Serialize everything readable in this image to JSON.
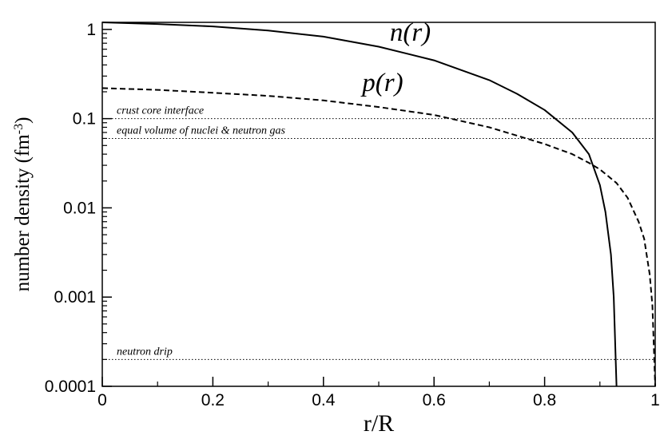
{
  "chart_data": {
    "type": "line",
    "xlabel": "r/R",
    "ylabel": "number density (fm",
    "ylabel_sup": "-3",
    "ylabel_close": ")",
    "xlim": [
      0,
      1
    ],
    "ylim": [
      0.0001,
      1.2
    ],
    "yscale": "log",
    "grid": false,
    "xticks": [
      {
        "value": 0,
        "label": "0"
      },
      {
        "value": 0.2,
        "label": "0.2"
      },
      {
        "value": 0.4,
        "label": "0.4"
      },
      {
        "value": 0.6,
        "label": "0.6"
      },
      {
        "value": 0.8,
        "label": "0.8"
      },
      {
        "value": 1,
        "label": "1"
      }
    ],
    "yticks": [
      {
        "value": 1,
        "label": "1"
      },
      {
        "value": 0.1,
        "label": "0.1"
      },
      {
        "value": 0.01,
        "label": "0.01"
      },
      {
        "value": 0.001,
        "label": "0.001"
      },
      {
        "value": 0.0001,
        "label": "0.0001"
      }
    ],
    "series": [
      {
        "name": "n(r)",
        "style": "solid",
        "x": [
          0,
          0.1,
          0.2,
          0.3,
          0.4,
          0.5,
          0.6,
          0.7,
          0.75,
          0.8,
          0.85,
          0.88,
          0.9,
          0.91,
          0.92,
          0.925,
          0.93
        ],
        "y": [
          1.2,
          1.15,
          1.08,
          0.97,
          0.83,
          0.64,
          0.45,
          0.27,
          0.19,
          0.125,
          0.07,
          0.04,
          0.018,
          0.009,
          0.003,
          0.001,
          0.0001
        ]
      },
      {
        "name": "p(r)",
        "style": "dashed",
        "x": [
          0,
          0.1,
          0.2,
          0.3,
          0.4,
          0.5,
          0.6,
          0.7,
          0.8,
          0.85,
          0.88,
          0.9,
          0.93,
          0.95,
          0.97,
          0.98,
          0.99,
          0.995,
          1.0
        ],
        "y": [
          0.22,
          0.21,
          0.195,
          0.18,
          0.16,
          0.135,
          0.11,
          0.08,
          0.052,
          0.04,
          0.032,
          0.027,
          0.019,
          0.013,
          0.007,
          0.0045,
          0.0018,
          0.0008,
          0.0001
        ]
      }
    ],
    "curve_labels": [
      {
        "series": "n(r)",
        "text": "n(r)",
        "x": 0.52,
        "y": 0.75
      },
      {
        "series": "p(r)",
        "text": "p(r)",
        "x": 0.47,
        "y": 0.205
      }
    ],
    "reference_lines": [
      {
        "y": 0.1,
        "label": "crust core interface"
      },
      {
        "y": 0.06,
        "label": "equal volume of nuclei & neutron gas"
      },
      {
        "y": 0.0002,
        "label": "neutron drip"
      }
    ]
  }
}
